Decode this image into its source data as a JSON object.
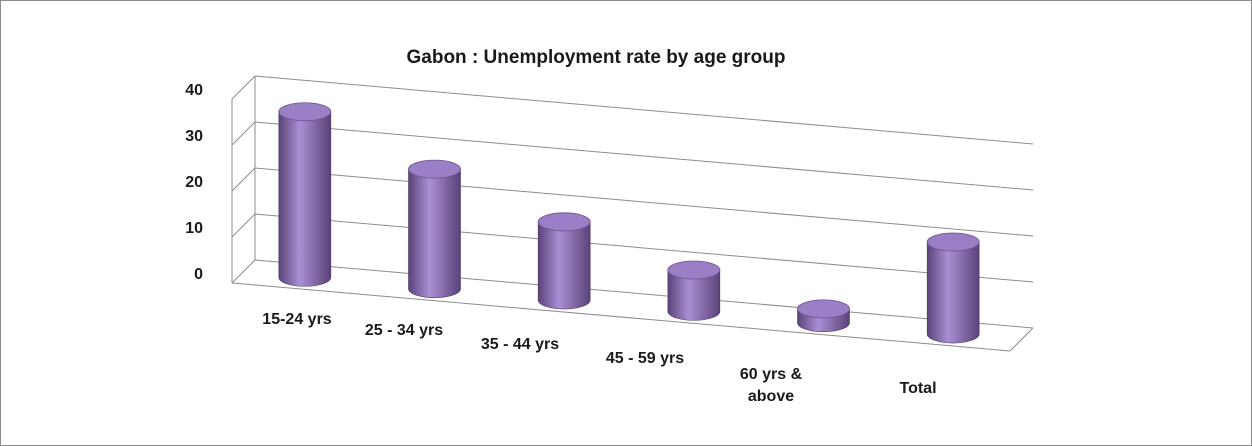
{
  "chart_data": {
    "type": "bar",
    "style": "3d-cylinder",
    "title": "Gabon : Unemployment rate by age group",
    "xlabel": "",
    "ylabel": "",
    "categories": [
      [
        "15-24 yrs"
      ],
      [
        "25 - 34 yrs"
      ],
      [
        "35 - 44 yrs"
      ],
      [
        "45 - 59 yrs"
      ],
      [
        "60 yrs &",
        "above"
      ],
      [
        "Total"
      ]
    ],
    "values": [
      36,
      26,
      17,
      9,
      3,
      20
    ],
    "ylim": [
      0,
      40
    ],
    "yticks": [
      "0",
      "10",
      "20",
      "30",
      "40"
    ],
    "grid": true,
    "legend": "none",
    "colors": {
      "bar_light": "#a98fd4",
      "bar_mid": "#8064a2",
      "bar_dark": "#5a4378",
      "bar_top": "#9b7fc6",
      "grid": "#8c8c8c"
    }
  }
}
